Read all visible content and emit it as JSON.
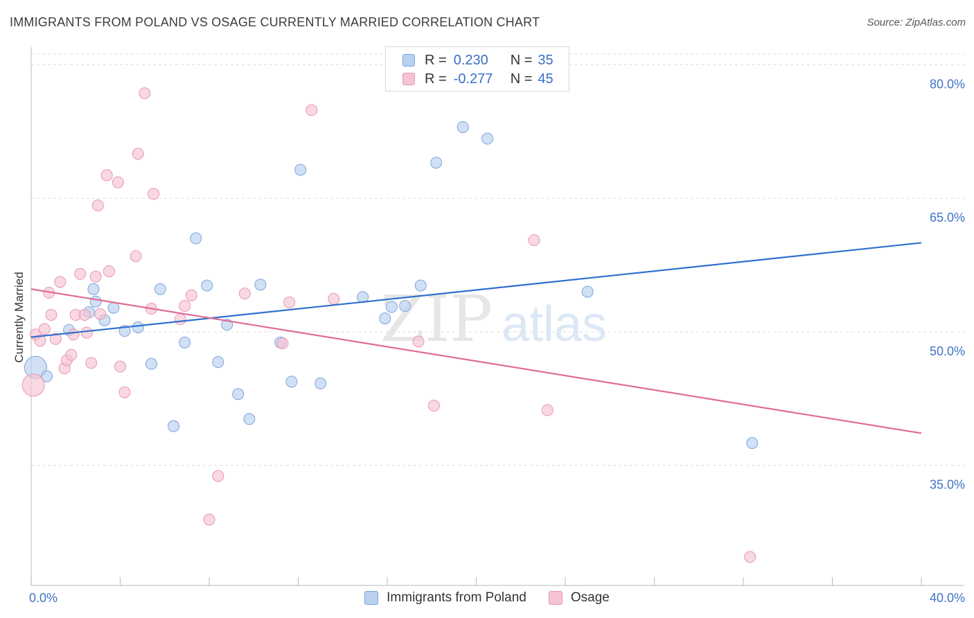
{
  "header": {
    "title": "IMMIGRANTS FROM POLAND VS OSAGE CURRENTLY MARRIED CORRELATION CHART",
    "source": "Source: ZipAtlas.com"
  },
  "legend": {
    "r_label": "R = ",
    "n_label": "N = ",
    "series": [
      {
        "name": "Immigrants from Poland",
        "r": "0.230",
        "n": "35"
      },
      {
        "name": "Osage",
        "r": "-0.277",
        "n": "45"
      }
    ]
  },
  "watermark": {
    "zip": "ZIP",
    "atlas": "atlas"
  },
  "colors": {
    "blue_fill": "#b9d0f0",
    "blue_stroke": "#7ca3dd",
    "blue_line": "#2f6fcf",
    "pink_fill": "#f6c3d3",
    "pink_stroke": "#e896b2",
    "pink_line": "#e06b96",
    "tick_text": "#3f74c4",
    "grid": "#dddddd"
  },
  "chart_data": {
    "type": "scatter",
    "title": "IMMIGRANTS FROM POLAND VS OSAGE CURRENTLY MARRIED CORRELATION CHART",
    "xlabel": "",
    "ylabel": "Currently Married",
    "xlim": [
      0,
      40
    ],
    "ylim": [
      21.5,
      83
    ],
    "x_tick_labels": [
      "0.0%",
      "40.0%"
    ],
    "y_ticks": [
      35,
      50,
      65,
      80
    ],
    "y_tick_labels": [
      "35.0%",
      "50.0%",
      "65.0%",
      "80.0%"
    ],
    "grid": true,
    "series": [
      {
        "name": "Immigrants from Poland",
        "color": "#7ca3dd",
        "trend": {
          "x": [
            0,
            40
          ],
          "y": [
            49.4,
            60.0
          ]
        },
        "points": [
          {
            "x": 0.2,
            "y": 46.0,
            "size": "large"
          },
          {
            "x": 0.7,
            "y": 45.0
          },
          {
            "x": 1.7,
            "y": 50.2
          },
          {
            "x": 2.6,
            "y": 52.2
          },
          {
            "x": 2.9,
            "y": 53.4
          },
          {
            "x": 2.8,
            "y": 54.8
          },
          {
            "x": 3.3,
            "y": 51.3
          },
          {
            "x": 3.7,
            "y": 52.7
          },
          {
            "x": 4.2,
            "y": 50.1
          },
          {
            "x": 4.8,
            "y": 50.5
          },
          {
            "x": 5.4,
            "y": 46.4
          },
          {
            "x": 5.8,
            "y": 54.8
          },
          {
            "x": 6.4,
            "y": 39.4
          },
          {
            "x": 6.9,
            "y": 48.8
          },
          {
            "x": 7.4,
            "y": 60.5
          },
          {
            "x": 7.9,
            "y": 55.2
          },
          {
            "x": 8.4,
            "y": 46.6
          },
          {
            "x": 8.8,
            "y": 50.8
          },
          {
            "x": 9.3,
            "y": 43.0
          },
          {
            "x": 9.8,
            "y": 40.2
          },
          {
            "x": 10.3,
            "y": 55.3
          },
          {
            "x": 11.2,
            "y": 48.8
          },
          {
            "x": 11.7,
            "y": 44.4
          },
          {
            "x": 12.1,
            "y": 68.2
          },
          {
            "x": 13.0,
            "y": 44.2
          },
          {
            "x": 14.9,
            "y": 53.9
          },
          {
            "x": 15.9,
            "y": 51.5
          },
          {
            "x": 16.2,
            "y": 52.8
          },
          {
            "x": 16.8,
            "y": 52.9
          },
          {
            "x": 17.5,
            "y": 55.2
          },
          {
            "x": 18.2,
            "y": 69.0
          },
          {
            "x": 19.4,
            "y": 73.0
          },
          {
            "x": 20.5,
            "y": 71.7
          },
          {
            "x": 25.0,
            "y": 54.5
          },
          {
            "x": 32.4,
            "y": 37.5
          }
        ]
      },
      {
        "name": "Osage",
        "color": "#e896b2",
        "trend": {
          "x": [
            0,
            40
          ],
          "y": [
            54.8,
            38.6
          ]
        },
        "points": [
          {
            "x": 0.1,
            "y": 44.0,
            "size": "large"
          },
          {
            "x": 0.2,
            "y": 49.7
          },
          {
            "x": 0.4,
            "y": 49.0
          },
          {
            "x": 0.6,
            "y": 50.3
          },
          {
            "x": 0.8,
            "y": 54.4
          },
          {
            "x": 0.9,
            "y": 51.9
          },
          {
            "x": 1.1,
            "y": 49.2
          },
          {
            "x": 1.3,
            "y": 55.6
          },
          {
            "x": 1.5,
            "y": 45.9
          },
          {
            "x": 1.6,
            "y": 46.8
          },
          {
            "x": 1.8,
            "y": 47.4
          },
          {
            "x": 1.9,
            "y": 49.7
          },
          {
            "x": 2.0,
            "y": 51.9
          },
          {
            "x": 2.2,
            "y": 56.5
          },
          {
            "x": 2.4,
            "y": 51.9
          },
          {
            "x": 2.5,
            "y": 49.9
          },
          {
            "x": 2.7,
            "y": 46.5
          },
          {
            "x": 2.9,
            "y": 56.2
          },
          {
            "x": 3.0,
            "y": 64.2
          },
          {
            "x": 3.1,
            "y": 52.0
          },
          {
            "x": 3.4,
            "y": 67.6
          },
          {
            "x": 3.5,
            "y": 56.8
          },
          {
            "x": 3.9,
            "y": 66.8
          },
          {
            "x": 4.0,
            "y": 46.1
          },
          {
            "x": 4.2,
            "y": 43.2
          },
          {
            "x": 4.7,
            "y": 58.5
          },
          {
            "x": 4.8,
            "y": 70.0
          },
          {
            "x": 5.1,
            "y": 76.8
          },
          {
            "x": 5.4,
            "y": 52.6
          },
          {
            "x": 5.5,
            "y": 65.5
          },
          {
            "x": 6.7,
            "y": 51.4
          },
          {
            "x": 6.9,
            "y": 52.9
          },
          {
            "x": 7.2,
            "y": 54.1
          },
          {
            "x": 8.0,
            "y": 28.9
          },
          {
            "x": 8.4,
            "y": 33.8
          },
          {
            "x": 9.6,
            "y": 54.3
          },
          {
            "x": 11.3,
            "y": 48.7
          },
          {
            "x": 11.6,
            "y": 53.3
          },
          {
            "x": 12.6,
            "y": 74.9
          },
          {
            "x": 13.6,
            "y": 53.7
          },
          {
            "x": 17.4,
            "y": 48.9
          },
          {
            "x": 18.1,
            "y": 41.7
          },
          {
            "x": 22.6,
            "y": 60.3
          },
          {
            "x": 23.2,
            "y": 41.2
          },
          {
            "x": 32.3,
            "y": 24.7
          }
        ]
      }
    ]
  }
}
